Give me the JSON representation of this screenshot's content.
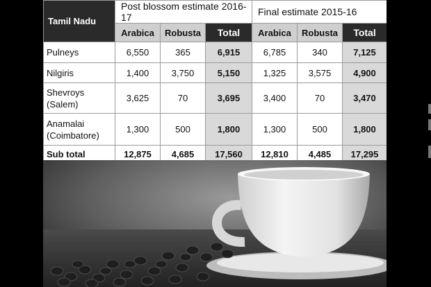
{
  "table": {
    "region_header": "Tamil Nadu",
    "groups": [
      "Post blossom estimate 2016-17",
      "Final estimate 2015-16"
    ],
    "columns": [
      "Arabica",
      "Robusta",
      "Total",
      "Arabica",
      "Robusta",
      "Total"
    ],
    "rows": [
      {
        "label": "Pulneys",
        "values": [
          "6,550",
          "365",
          "6,915",
          "6,785",
          "340",
          "7,125"
        ]
      },
      {
        "label": "Nilgiris",
        "values": [
          "1,400",
          "3,750",
          "5,150",
          "1,325",
          "3,575",
          "4,900"
        ]
      },
      {
        "label": "Shevroys (Salem)",
        "values": [
          "3,625",
          "70",
          "3,695",
          "3,400",
          "70",
          "3,470"
        ]
      },
      {
        "label": "Anamalai (Coimbatore)",
        "values": [
          "1,300",
          "500",
          "1,800",
          "1,300",
          "500",
          "1,800"
        ]
      }
    ],
    "subtotal": {
      "label": "Sub total",
      "values": [
        "12,875",
        "4,685",
        "17,560",
        "12,810",
        "4,485",
        "17,295"
      ]
    }
  }
}
